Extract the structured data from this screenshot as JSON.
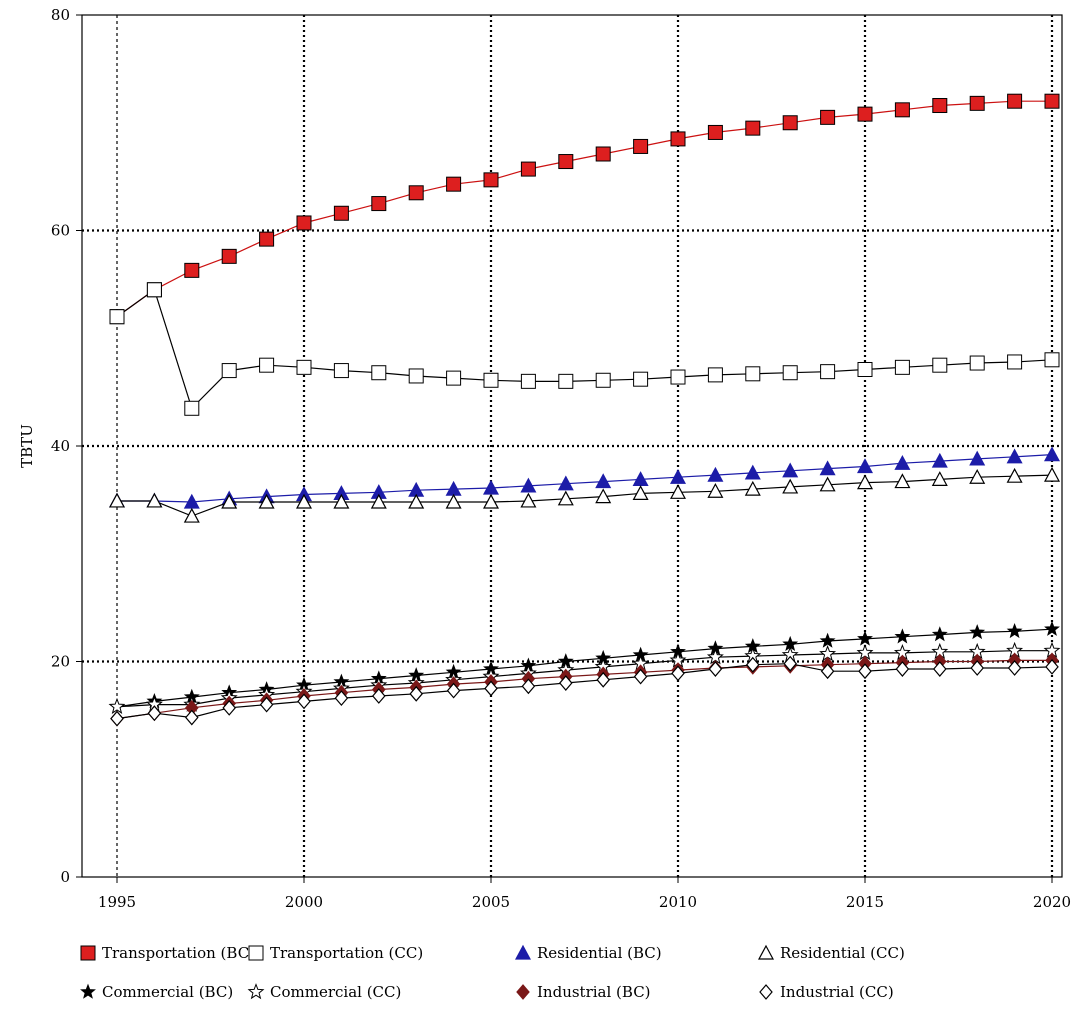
{
  "chart_data": {
    "type": "line",
    "title": "",
    "xlabel": "",
    "ylabel": "TBTU",
    "xlim": [
      1995,
      2020
    ],
    "ylim": [
      0,
      80
    ],
    "xticks": [
      1995,
      2000,
      2005,
      2010,
      2015,
      2020
    ],
    "yticks": [
      0,
      20,
      40,
      60,
      80
    ],
    "x_tick_labels": [
      "1995",
      "2000",
      "2005",
      "2010",
      "2015",
      "2020"
    ],
    "y_tick_labels": [
      "0",
      "20",
      "40",
      "60",
      "80"
    ],
    "grid": "dotted, at each major tick",
    "legend_position": "bottom",
    "x": [
      1995,
      1996,
      1997,
      1998,
      1999,
      2000,
      2001,
      2002,
      2003,
      2004,
      2005,
      2006,
      2007,
      2008,
      2009,
      2010,
      2011,
      2012,
      2013,
      2014,
      2015,
      2016,
      2017,
      2018,
      2019,
      2020
    ],
    "series": [
      {
        "name": "Transportation (BC)",
        "marker": "square",
        "filled": true,
        "color": "#dd1f1f",
        "line_color": "#cc1111",
        "values": [
          52.0,
          54.5,
          56.3,
          57.6,
          59.2,
          60.7,
          61.6,
          62.5,
          63.5,
          64.3,
          64.7,
          65.7,
          66.4,
          67.1,
          67.8,
          68.5,
          69.1,
          69.5,
          70.0,
          70.5,
          70.8,
          71.2,
          71.6,
          71.8,
          72.0,
          72.0
        ]
      },
      {
        "name": "Transportation (CC)",
        "marker": "square",
        "filled": false,
        "color": "#000000",
        "line_color": "#000000",
        "values": [
          52.0,
          54.5,
          43.5,
          47.0,
          47.5,
          47.3,
          47.0,
          46.8,
          46.5,
          46.3,
          46.1,
          46.0,
          46.0,
          46.1,
          46.2,
          46.4,
          46.6,
          46.7,
          46.8,
          46.9,
          47.1,
          47.3,
          47.5,
          47.7,
          47.8,
          48.0
        ]
      },
      {
        "name": "Residential (BC)",
        "marker": "triangle",
        "filled": true,
        "color": "#1c1ca8",
        "line_color": "#1c1ca8",
        "values": [
          34.9,
          34.9,
          34.8,
          35.1,
          35.3,
          35.5,
          35.6,
          35.7,
          35.9,
          36.0,
          36.1,
          36.3,
          36.5,
          36.7,
          36.9,
          37.1,
          37.3,
          37.5,
          37.7,
          37.9,
          38.1,
          38.4,
          38.6,
          38.8,
          39.0,
          39.2
        ]
      },
      {
        "name": "Residential (CC)",
        "marker": "triangle",
        "filled": false,
        "color": "#000000",
        "line_color": "#000000",
        "values": [
          34.9,
          34.9,
          33.5,
          34.8,
          34.8,
          34.8,
          34.8,
          34.8,
          34.8,
          34.8,
          34.8,
          34.9,
          35.1,
          35.3,
          35.6,
          35.7,
          35.8,
          36.0,
          36.2,
          36.4,
          36.6,
          36.7,
          36.9,
          37.1,
          37.2,
          37.3
        ]
      },
      {
        "name": "Commercial (BC)",
        "marker": "star",
        "filled": true,
        "color": "#000000",
        "line_color": "#000000",
        "values": [
          15.8,
          16.3,
          16.7,
          17.1,
          17.4,
          17.8,
          18.1,
          18.4,
          18.7,
          19.0,
          19.3,
          19.6,
          20.0,
          20.3,
          20.6,
          20.9,
          21.2,
          21.4,
          21.6,
          21.9,
          22.1,
          22.3,
          22.5,
          22.7,
          22.8,
          23.0
        ]
      },
      {
        "name": "Commercial (CC)",
        "marker": "star",
        "filled": false,
        "color": "#000000",
        "line_color": "#000000",
        "values": [
          15.8,
          16.0,
          16.0,
          16.6,
          16.9,
          17.2,
          17.5,
          17.8,
          18.0,
          18.3,
          18.6,
          18.9,
          19.2,
          19.5,
          19.8,
          20.1,
          20.4,
          20.5,
          20.6,
          20.7,
          20.8,
          20.8,
          20.9,
          20.9,
          21.0,
          21.0
        ]
      },
      {
        "name": "Industrial (BC)",
        "marker": "diamond",
        "filled": true,
        "color": "#7a1818",
        "line_color": "#7a1818",
        "values": [
          14.7,
          15.2,
          15.7,
          16.1,
          16.4,
          16.8,
          17.1,
          17.4,
          17.6,
          17.9,
          18.1,
          18.4,
          18.6,
          18.8,
          19.0,
          19.2,
          19.4,
          19.5,
          19.6,
          19.7,
          19.8,
          19.9,
          20.0,
          20.0,
          20.1,
          20.1
        ]
      },
      {
        "name": "Industrial (CC)",
        "marker": "diamond",
        "filled": false,
        "color": "#000000",
        "line_color": "#000000",
        "values": [
          14.7,
          15.2,
          14.8,
          15.7,
          16.0,
          16.3,
          16.6,
          16.8,
          17.0,
          17.3,
          17.5,
          17.7,
          18.0,
          18.3,
          18.6,
          18.9,
          19.3,
          19.7,
          19.8,
          19.1,
          19.1,
          19.3,
          19.3,
          19.4,
          19.4,
          19.5
        ]
      }
    ]
  }
}
